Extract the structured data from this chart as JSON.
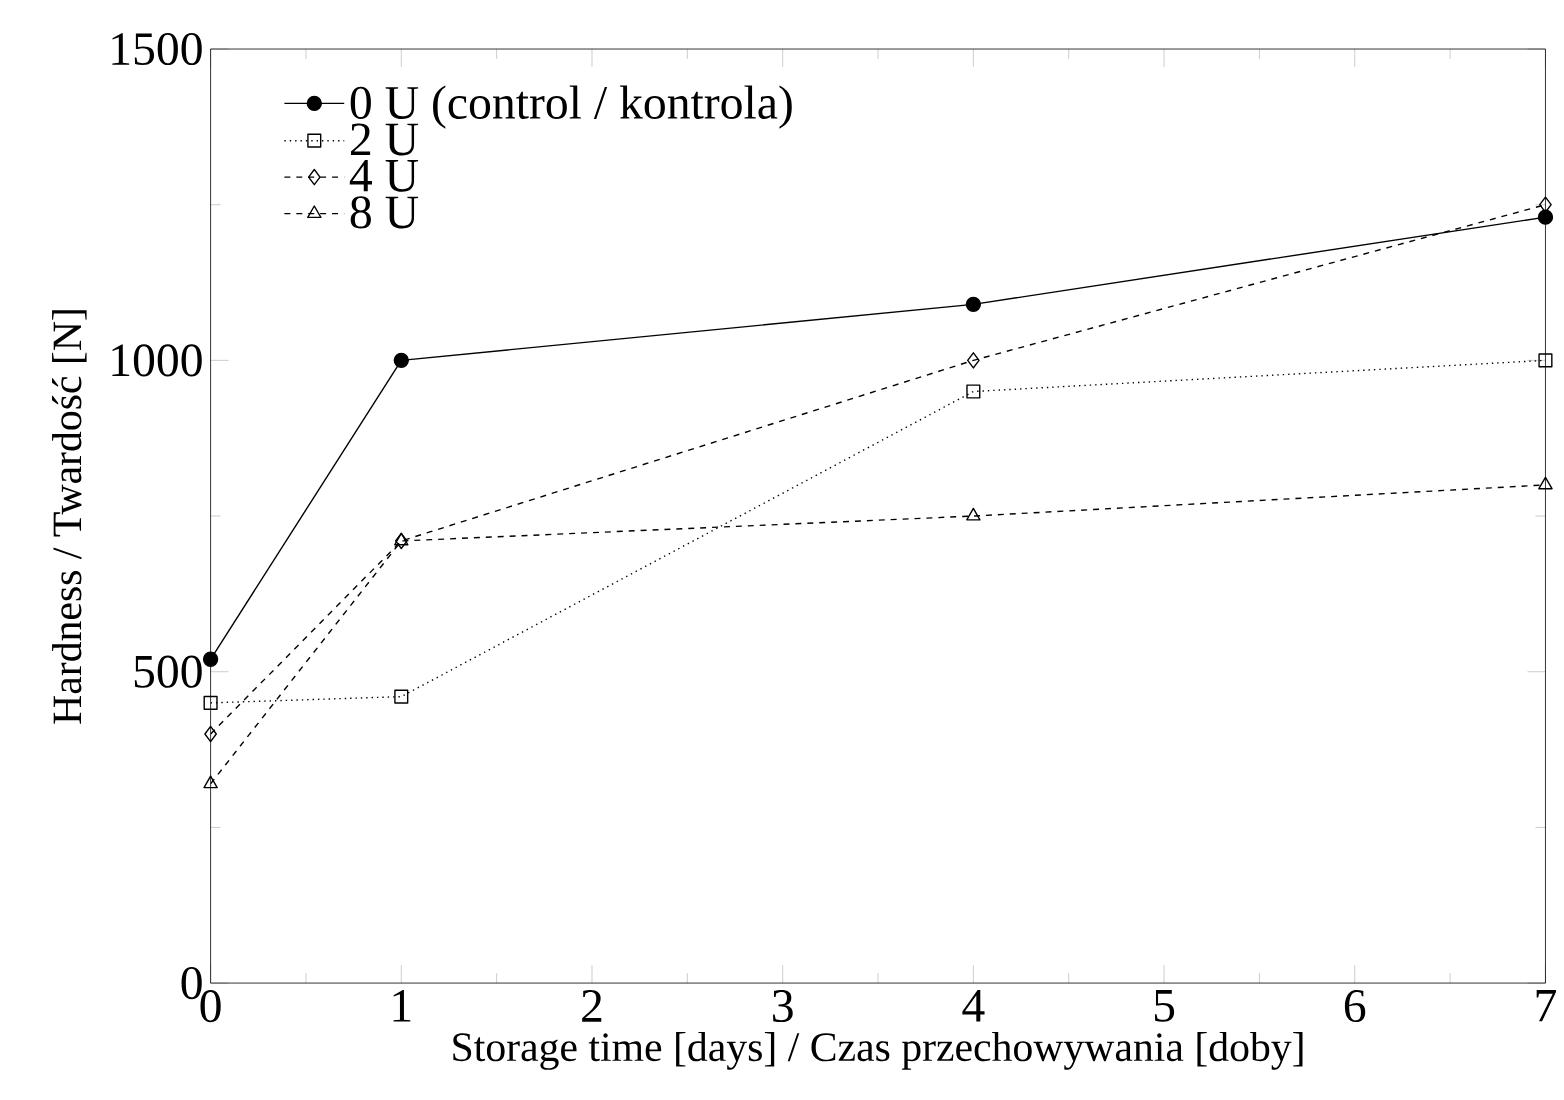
{
  "chart_data": {
    "type": "line",
    "xlabel": "Storage time [days] / Czas przechowywania [doby]",
    "ylabel": "Hardness / Twardość [N]",
    "xlim": [
      0,
      7
    ],
    "xticks": [
      0,
      1,
      2,
      3,
      4,
      5,
      6,
      7
    ],
    "ylim": [
      0,
      1500
    ],
    "yticks": [
      0,
      500,
      1000,
      1500
    ],
    "grid": false,
    "legend": "top left",
    "series": [
      {
        "name": "0 U (control / kontrola)",
        "color": "#000000",
        "marker": "circle",
        "line_style": "solid",
        "x": [
          0,
          1,
          4,
          7
        ],
        "values": [
          520,
          1000,
          1090,
          1230
        ]
      },
      {
        "name": "2 U",
        "color": "#000000",
        "marker": "square",
        "line_style": "dotted",
        "x": [
          0,
          1,
          4,
          7
        ],
        "values": [
          450,
          460,
          950,
          1000
        ]
      },
      {
        "name": "4 U",
        "color": "#000000",
        "marker": "diamond",
        "line_style": "dashed",
        "x": [
          0,
          1,
          4,
          7
        ],
        "values": [
          400,
          710,
          1000,
          1250
        ]
      },
      {
        "name": "8 U",
        "color": "#000000",
        "marker": "triangle",
        "line_style": "dashed",
        "x": [
          0,
          1,
          4,
          7
        ],
        "values": [
          320,
          710,
          750,
          800
        ]
      }
    ]
  }
}
